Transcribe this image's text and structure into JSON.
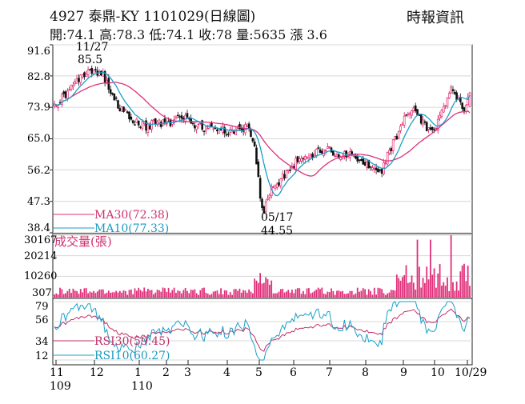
{
  "header": {
    "title": "4927  泰鼎-KY 1101029(日線圖)",
    "source": "時報資訊",
    "quote": "開:74.1 高:78.3 低:74.1 收:78 量:5635 漲 3.6"
  },
  "colors": {
    "up": "#e0115f",
    "down": "#111111",
    "ma30": "#e0307a",
    "ma10": "#1aa0c8",
    "volume": "#e0307a",
    "rsi30": "#c0306a",
    "rsi10": "#1aa0c8"
  },
  "chart_data": [
    {
      "type": "candlestick",
      "yticks": [
        "91.6",
        "82.8",
        "73.9",
        "65.0",
        "56.2",
        "47.3",
        "38.4"
      ],
      "ylim": [
        38.4,
        91.6
      ],
      "annotations": [
        {
          "date": "11/27",
          "value": "85.5"
        },
        {
          "date": "05/17",
          "value": "44.55"
        }
      ],
      "legend": [
        "MA30(72.38)",
        "MA10(77.33)"
      ],
      "last": {
        "open": 74.1,
        "high": 78.3,
        "low": 74.1,
        "close": 78
      },
      "ma30_last": 72.38,
      "ma10_last": 77.33,
      "price_path": [
        [
          0,
          74.5
        ],
        [
          5,
          77
        ],
        [
          10,
          80
        ],
        [
          15,
          83
        ],
        [
          18,
          85
        ],
        [
          22,
          84
        ],
        [
          26,
          83
        ],
        [
          30,
          78
        ],
        [
          35,
          74
        ],
        [
          40,
          71
        ],
        [
          45,
          69
        ],
        [
          50,
          68.5
        ],
        [
          55,
          70
        ],
        [
          60,
          69
        ],
        [
          63,
          70
        ],
        [
          66,
          72
        ],
        [
          70,
          71
        ],
        [
          75,
          69
        ],
        [
          80,
          68
        ],
        [
          85,
          68
        ],
        [
          90,
          67.5
        ],
        [
          95,
          67
        ],
        [
          100,
          67.5
        ],
        [
          103,
          68.5
        ],
        [
          107,
          64
        ],
        [
          110,
          48
        ],
        [
          112,
          45
        ],
        [
          115,
          50
        ],
        [
          120,
          53
        ],
        [
          125,
          56
        ],
        [
          130,
          59
        ],
        [
          135,
          60
        ],
        [
          140,
          61
        ],
        [
          143,
          62
        ],
        [
          146,
          63
        ],
        [
          150,
          60
        ],
        [
          155,
          61
        ],
        [
          160,
          60
        ],
        [
          165,
          58
        ],
        [
          170,
          56
        ],
        [
          174,
          55
        ],
        [
          178,
          60
        ],
        [
          183,
          66
        ],
        [
          188,
          72
        ],
        [
          192,
          73
        ],
        [
          196,
          70
        ],
        [
          200,
          67
        ],
        [
          204,
          69
        ],
        [
          208,
          73
        ],
        [
          212,
          80
        ],
        [
          216,
          76
        ],
        [
          219,
          74.1
        ],
        [
          222,
          78
        ]
      ]
    },
    {
      "type": "bar",
      "ylabel": "成交量(張)",
      "yticks": [
        "30167",
        "20214",
        "10260",
        "307"
      ],
      "ylim": [
        307,
        30167
      ],
      "last_volume": 5635
    },
    {
      "type": "line",
      "yticks": [
        "79",
        "56",
        "34",
        "12"
      ],
      "ylim": [
        12,
        79
      ],
      "legend": [
        "RSI30(59.45)",
        "RSI10(60.27)"
      ],
      "series": [
        {
          "name": "RSI30",
          "last": 59.45
        },
        {
          "name": "RSI10",
          "last": 60.27
        }
      ]
    }
  ],
  "x_axis": {
    "months": [
      "11",
      "12",
      "1",
      "2",
      "3",
      "4",
      "5",
      "6",
      "7",
      "8",
      "9",
      "10",
      "10/29"
    ],
    "years": [
      "109",
      "110"
    ]
  }
}
